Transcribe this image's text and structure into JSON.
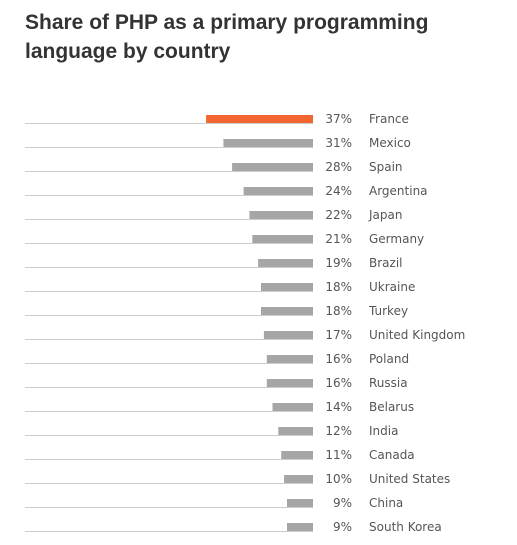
{
  "colors": {
    "highlight": "#f26531",
    "bar": "#a6a6a6",
    "baseline": "#cccccc",
    "text": "#555555",
    "title": "#333333"
  },
  "chart_data": {
    "type": "bar",
    "orientation": "horizontal",
    "title": "Share of PHP as a primary programming language by country",
    "unit": "%",
    "highlight_category": "France",
    "categories": [
      "France",
      "Mexico",
      "Spain",
      "Argentina",
      "Japan",
      "Germany",
      "Brazil",
      "Ukraine",
      "Turkey",
      "United Kingdom",
      "Poland",
      "Russia",
      "Belarus",
      "India",
      "Canada",
      "United States",
      "China",
      "South Korea"
    ],
    "values": [
      37,
      31,
      28,
      24,
      22,
      21,
      19,
      18,
      18,
      17,
      16,
      16,
      14,
      12,
      11,
      10,
      9,
      9
    ],
    "value_labels": [
      "37%",
      "31%",
      "28%",
      "24%",
      "22%",
      "21%",
      "19%",
      "18%",
      "18%",
      "17%",
      "16%",
      "16%",
      "14%",
      "12%",
      "11%",
      "10%",
      "9%",
      "9%"
    ]
  }
}
